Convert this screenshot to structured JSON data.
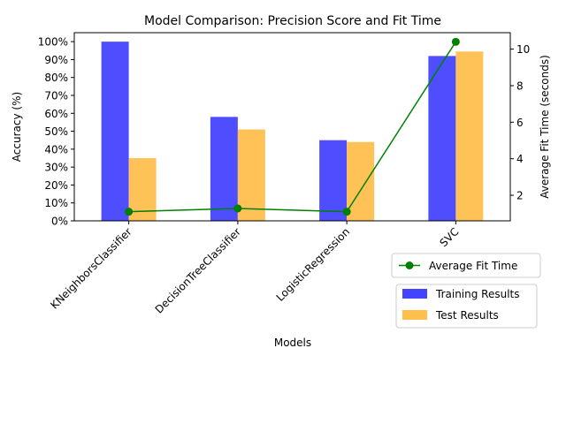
{
  "chart_data": {
    "type": "bar",
    "title": "Model Comparison: Precision Score and Fit Time",
    "xlabel": "Models",
    "ylabel": "Accuracy (%)",
    "ylabel_right": "Average Fit Time (seconds)",
    "categories": [
      "KNeighborsClassifier",
      "DecisionTreeClassifier",
      "LogisticRegression",
      "SVC"
    ],
    "series": [
      {
        "name": "Training Results",
        "type": "bar",
        "axis": "left",
        "color": "#4444ff",
        "values": [
          100,
          58,
          45,
          92
        ]
      },
      {
        "name": "Test Results",
        "type": "bar",
        "axis": "left",
        "color": "#ffbf4d",
        "values": [
          35,
          51,
          44,
          94.5
        ]
      },
      {
        "name": "Average Fit Time",
        "type": "line",
        "axis": "right",
        "color": "#008000",
        "marker": "circle",
        "values": [
          1.1,
          1.28,
          1.1,
          10.4
        ]
      }
    ],
    "ylim": [
      0,
      105
    ],
    "yticks": [
      0,
      10,
      20,
      30,
      40,
      50,
      60,
      70,
      80,
      90,
      100
    ],
    "ytick_suffix": "%",
    "ylim_right": [
      0.6,
      10.9
    ],
    "yticks_right": [
      2,
      4,
      6,
      8,
      10
    ],
    "legend_bars_position": "lower-right, below plot",
    "legend_line_position": "right, below plot",
    "grid": false
  }
}
